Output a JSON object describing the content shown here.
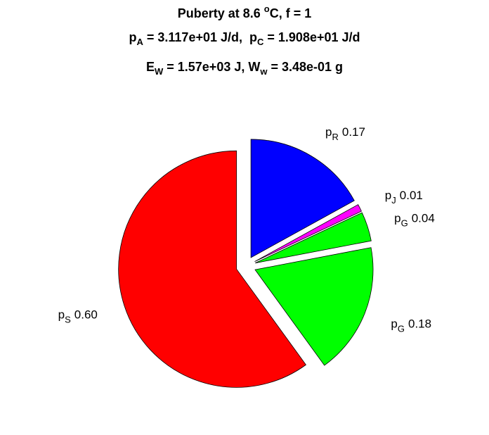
{
  "chart_data": {
    "type": "pie",
    "title": [
      [
        {
          "text": "Puberty at 8.6 "
        },
        {
          "text": "o",
          "shift": "sup"
        },
        {
          "text": "C, f = 1"
        }
      ],
      [
        {
          "text": "p"
        },
        {
          "text": "A",
          "shift": "sub"
        },
        {
          "text": " = 3.117e+01 J/d,  p"
        },
        {
          "text": "C",
          "shift": "sub"
        },
        {
          "text": " = 1.908e+01 J/d"
        }
      ],
      [
        {
          "text": "E"
        },
        {
          "text": "W",
          "shift": "sub"
        },
        {
          "text": " = 1.57e+03 J, W"
        },
        {
          "text": "w",
          "shift": "sub"
        },
        {
          "text": " = 3.48e-01 g"
        }
      ]
    ],
    "categories": [
      {
        "symbol": "p",
        "subscript": "R"
      },
      {
        "symbol": "p",
        "subscript": "J"
      },
      {
        "symbol": "p",
        "subscript": "G"
      },
      {
        "symbol": "p",
        "subscript": "G"
      },
      {
        "symbol": "p",
        "subscript": "S"
      }
    ],
    "values": [
      0.17,
      0.01,
      0.04,
      0.18,
      0.6
    ],
    "value_labels": [
      "0.17",
      "0.01",
      "0.04",
      "0.18",
      "0.60"
    ],
    "colors": [
      "#0000ff",
      "#ff00ff",
      "#00ff00",
      "#00ff00",
      "#ff0000"
    ],
    "explode": true,
    "direction": "clockwise"
  }
}
